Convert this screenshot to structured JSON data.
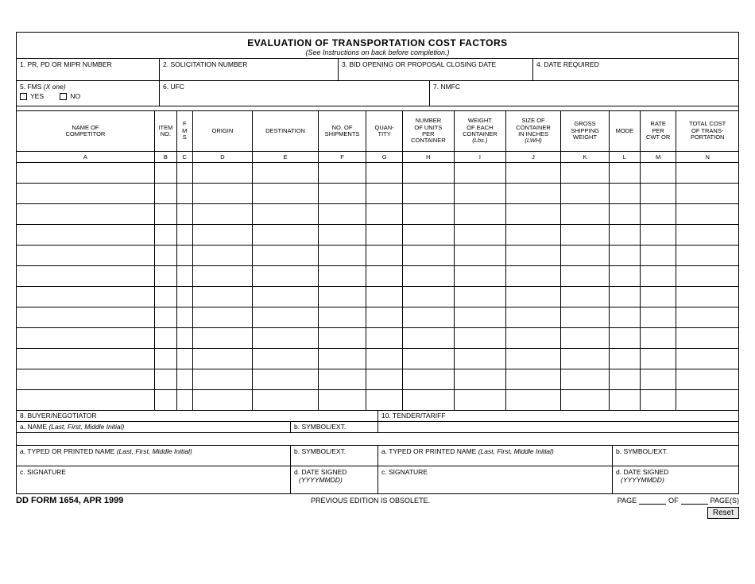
{
  "title": "EVALUATION OF TRANSPORTATION COST FACTORS",
  "subtitle": "(See Instructions on back before completion.)",
  "fields": {
    "f1": "1. PR, PD OR MIPR NUMBER",
    "f2": "2. SOLICITATION NUMBER",
    "f3": "3. BID OPENING OR PROPOSAL CLOSING DATE",
    "f4": "4. DATE REQUIRED",
    "f5": "5. FMS",
    "f5_suffix": "(X one)",
    "f5_yes": "YES",
    "f5_no": "NO",
    "f6": "6. UFC",
    "f7": "7. NMFC",
    "f8": "8. BUYER/NEGOTIATOR",
    "f10": "10. TENDER/TARIFF",
    "a_name": "a. NAME",
    "a_name_suffix": "(Last, First, Middle Initial)",
    "b_symbol": "b. SYMBOL/EXT.",
    "a_typed": "a. TYPED OR PRINTED NAME",
    "a_typed_suffix": "(Last, First, Middle Initial)",
    "c_sig": "c. SIGNATURE",
    "d_date": "d. DATE SIGNED",
    "d_date_suffix": "(YYYYMMDD)"
  },
  "table": {
    "headers": [
      "NAME OF\nCOMPETITOR",
      "ITEM\nNO.",
      "F\nM\nS",
      "ORIGIN",
      "DESTINATION",
      "NO. OF\nSHIPMENTS",
      "QUAN-\nTITY",
      "NUMBER\nOF UNITS\nPER\nCONTAINER",
      "WEIGHT\nOF EACH\nCONTAINER\n(Lbs.)",
      "SIZE OF\nCONTAINER\nIN INCHES\n(LWH)",
      "GROSS\nSHIPPING\nWEIGHT",
      "MODE",
      "RATE\nPER\nCWT OR",
      "TOTAL COST\nOF TRANS-\nPORTATION"
    ],
    "colkeys": [
      "A",
      "B",
      "C",
      "D",
      "E",
      "F",
      "G",
      "H",
      "I",
      "J",
      "K",
      "L",
      "M",
      "N"
    ],
    "widths": [
      160,
      26,
      18,
      70,
      76,
      56,
      42,
      60,
      60,
      64,
      56,
      36,
      42,
      72
    ],
    "num_data_rows": 12
  },
  "footer": {
    "form_id": "DD FORM 1654, APR 1999",
    "obsolete": "PREVIOUS EDITION IS OBSOLETE.",
    "page": "PAGE",
    "of": "OF",
    "pages": "PAGE(S)"
  },
  "reset": "Reset"
}
